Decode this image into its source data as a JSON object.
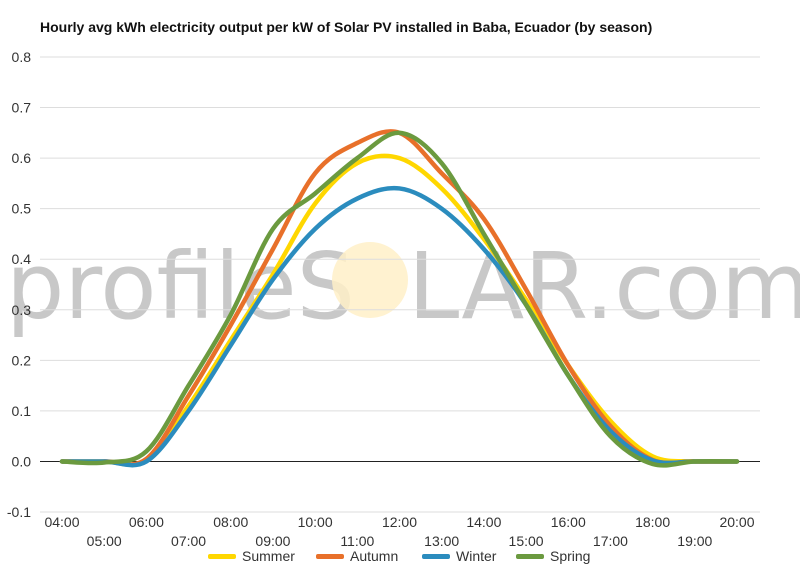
{
  "title": "Hourly avg kWh electricity output per kW of Solar PV installed in Baba, Ecuador (by season)",
  "watermark": {
    "left": "profileS",
    "right": "LAR.com"
  },
  "chart_data": {
    "type": "line",
    "title": "Hourly avg kWh electricity output per kW of Solar PV installed in Baba, Ecuador (by season)",
    "xlabel": "",
    "ylabel": "",
    "x_ticks": [
      "04:00",
      "05:00",
      "06:00",
      "07:00",
      "08:00",
      "09:00",
      "10:00",
      "11:00",
      "12:00",
      "13:00",
      "14:00",
      "15:00",
      "16:00",
      "17:00",
      "18:00",
      "19:00",
      "20:00"
    ],
    "y_ticks": [
      "-0.1",
      "0.0",
      "0.1",
      "0.2",
      "0.3",
      "0.4",
      "0.5",
      "0.6",
      "0.7",
      "0.8"
    ],
    "ylim": [
      -0.1,
      0.8
    ],
    "grid": true,
    "legend_position": "bottom",
    "x": [
      "04:00",
      "05:00",
      "06:00",
      "07:00",
      "08:00",
      "09:00",
      "10:00",
      "11:00",
      "12:00",
      "13:00",
      "14:00",
      "15:00",
      "16:00",
      "17:00",
      "18:00",
      "19:00",
      "20:00"
    ],
    "series": [
      {
        "name": "Summer",
        "color": "#ffd700",
        "values": [
          0,
          0,
          0.002,
          0.11,
          0.24,
          0.37,
          0.51,
          0.59,
          0.6,
          0.54,
          0.44,
          0.32,
          0.19,
          0.08,
          0.01,
          0,
          0
        ]
      },
      {
        "name": "Autumn",
        "color": "#e8702a",
        "values": [
          0,
          0,
          0.005,
          0.13,
          0.27,
          0.42,
          0.57,
          0.63,
          0.65,
          0.57,
          0.48,
          0.34,
          0.19,
          0.07,
          0.003,
          0,
          0
        ]
      },
      {
        "name": "Winter",
        "color": "#2b8cbe",
        "values": [
          0,
          0,
          0.0,
          0.1,
          0.23,
          0.36,
          0.46,
          0.52,
          0.54,
          0.5,
          0.42,
          0.31,
          0.17,
          0.06,
          0.002,
          0,
          0
        ]
      },
      {
        "name": "Spring",
        "color": "#6b9a3f",
        "values": [
          0,
          -0.002,
          0.02,
          0.15,
          0.29,
          0.46,
          0.53,
          0.6,
          0.65,
          0.59,
          0.45,
          0.31,
          0.17,
          0.05,
          -0.005,
          0,
          0
        ]
      }
    ]
  }
}
